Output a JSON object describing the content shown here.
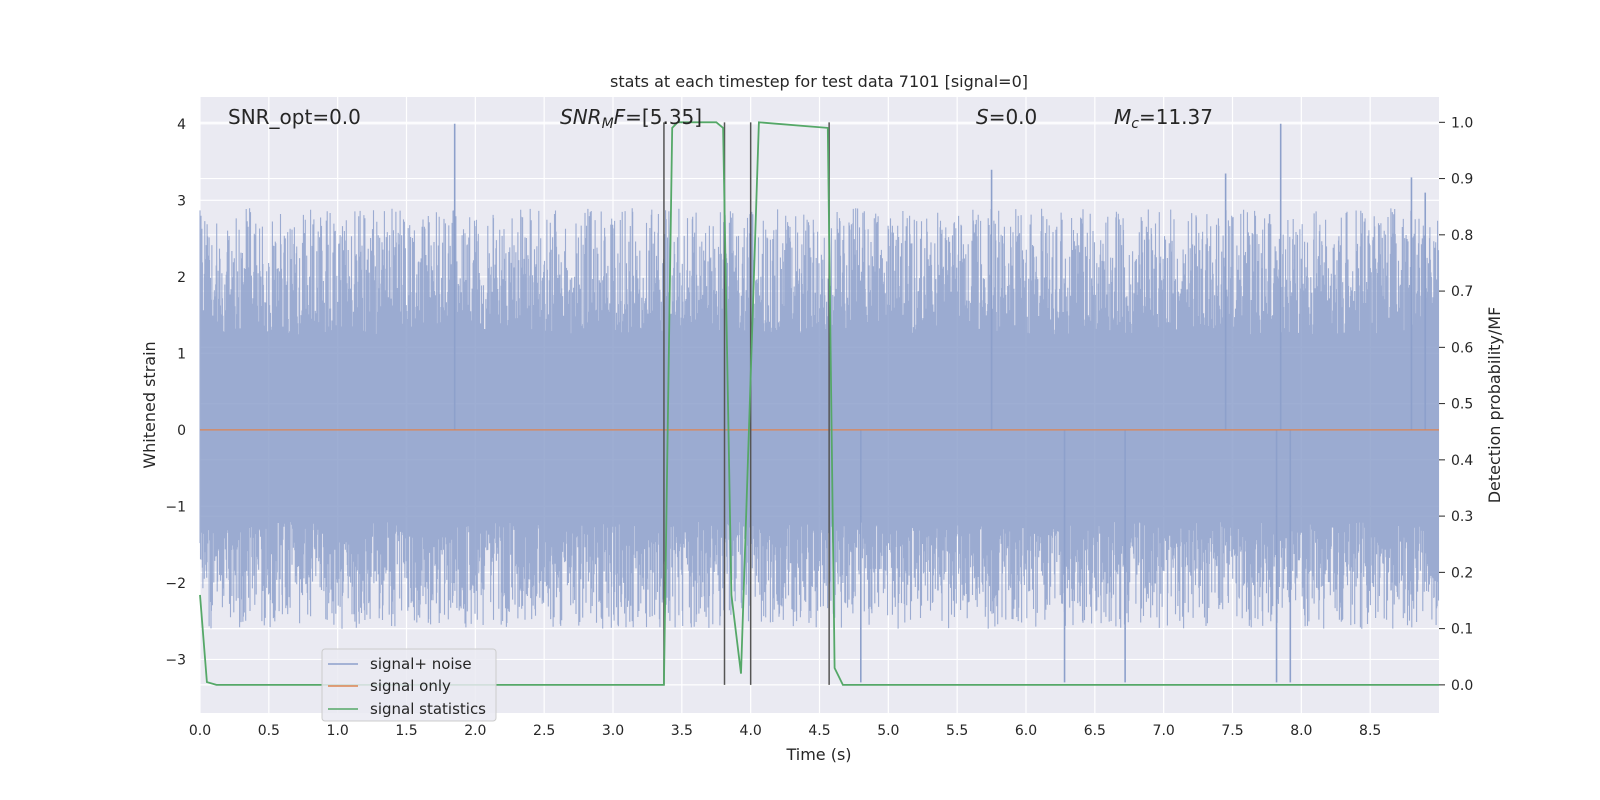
{
  "chart_data": {
    "type": "line",
    "title": "stats at each timestep for test data 7101 [signal=0]",
    "xlabel": "Time (s)",
    "ylabel_left": "Whitened strain",
    "ylabel_right": "Detection probability/MF",
    "xlim": [
      0.0,
      9.0
    ],
    "ylim_left": [
      -3.7,
      4.35
    ],
    "ylim_right": [
      -0.05,
      1.045
    ],
    "x_ticks": [
      "0.0",
      "0.5",
      "1.0",
      "1.5",
      "2.0",
      "2.5",
      "3.0",
      "3.5",
      "4.0",
      "4.5",
      "5.0",
      "5.5",
      "6.0",
      "6.5",
      "7.0",
      "7.5",
      "8.0",
      "8.5"
    ],
    "y_ticks_left": [
      "−3",
      "−2",
      "−1",
      "0",
      "1",
      "2",
      "3",
      "4"
    ],
    "y_ticks_right": [
      "0.0",
      "0.1",
      "0.2",
      "0.3",
      "0.4",
      "0.5",
      "0.6",
      "0.7",
      "0.8",
      "0.9",
      "1.0"
    ],
    "grid": true,
    "legend_position": "lower-left",
    "annotations": {
      "snr_opt": "SNR_opt=0.0",
      "snr_mf_main": "SNR",
      "snr_mf_sub": "M",
      "snr_mf_f": "F",
      "snr_mf_value": "=[5.35]",
      "s_symbol": "S",
      "s_value": "=0.0",
      "mc_symbol": "M",
      "mc_sub": "c",
      "mc_value": "=11.37"
    },
    "series": [
      {
        "name": "signal+ noise",
        "color": "#8da0cb",
        "description_axis": "left",
        "noise_band": {
          "typical_abs_max": 2.0,
          "peak_max": 4.0,
          "peak_min": -3.3
        },
        "notable_peaks": [
          {
            "x": 1.85,
            "y": 4.0
          },
          {
            "x": 7.85,
            "y": 4.0
          },
          {
            "x": 5.75,
            "y": 3.4
          },
          {
            "x": 7.45,
            "y": 3.35
          },
          {
            "x": 8.8,
            "y": 3.3
          },
          {
            "x": 8.9,
            "y": 3.1
          },
          {
            "x": 6.28,
            "y": -3.3
          },
          {
            "x": 6.72,
            "y": -3.3
          },
          {
            "x": 7.82,
            "y": -3.3
          },
          {
            "x": 7.92,
            "y": -3.3
          },
          {
            "x": 4.8,
            "y": -3.3
          }
        ]
      },
      {
        "name": "signal only",
        "color": "#dd8452",
        "description_axis": "left",
        "x": [
          0.0,
          9.0
        ],
        "y": [
          0.0,
          0.0
        ]
      },
      {
        "name": "signal statistics",
        "color": "#55a868",
        "description_axis": "right",
        "x": [
          0.0,
          0.05,
          0.12,
          3.37,
          3.43,
          3.47,
          3.55,
          3.75,
          3.8,
          3.86,
          3.93,
          4.0,
          4.06,
          4.56,
          4.61,
          4.67,
          9.0
        ],
        "y": [
          0.16,
          0.005,
          0.0,
          0.0,
          0.99,
          1.0,
          1.0,
          1.0,
          0.99,
          0.16,
          0.02,
          0.55,
          1.0,
          0.99,
          0.03,
          0.0,
          0.0
        ]
      }
    ],
    "vertical_markers": [
      3.37,
      3.81,
      4.0,
      4.57
    ],
    "marker_color": "#555555"
  }
}
